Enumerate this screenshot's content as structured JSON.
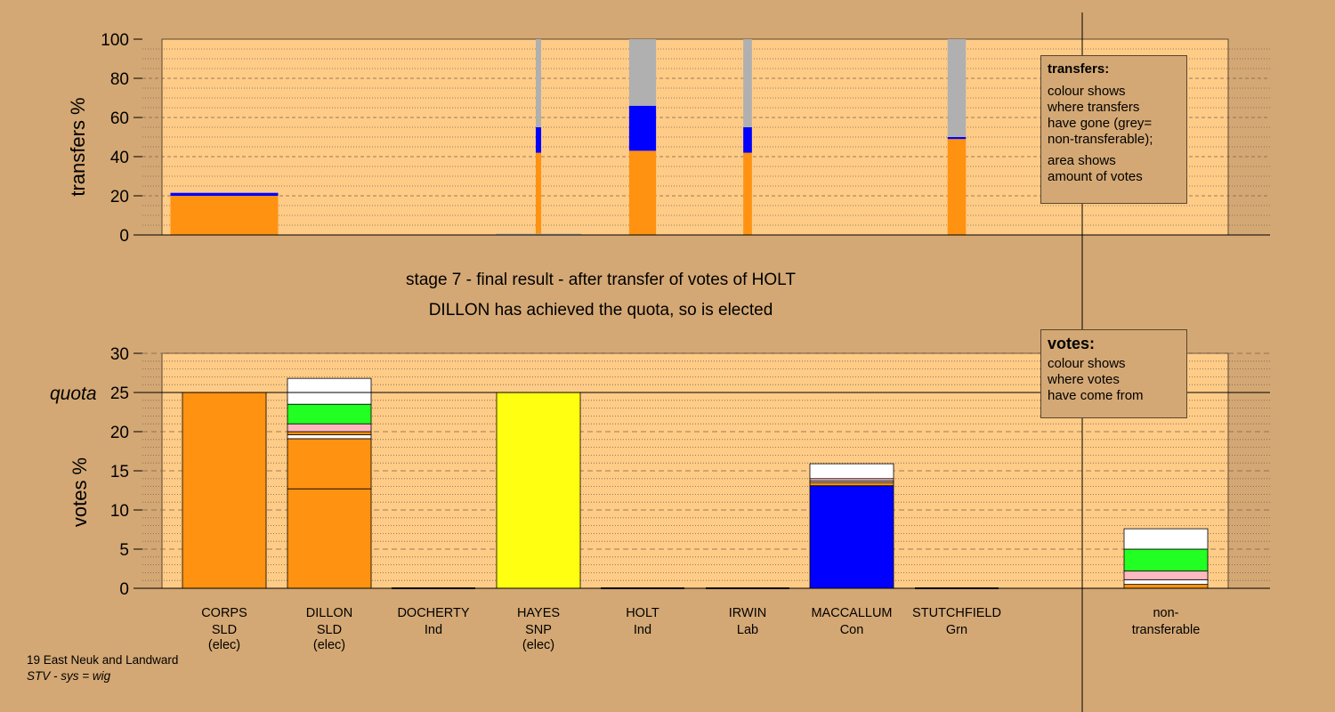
{
  "stage_title": "stage 7 - final result - after transfer of votes of HOLT",
  "stage_subtitle": "DILLON has achieved the quota, so is elected",
  "transfers_box": {
    "title": "transfers:",
    "lines_a": [
      "colour shows",
      "where transfers",
      "have gone (grey=",
      "non-transferable);"
    ],
    "lines_b": [
      "area shows",
      "amount of votes"
    ]
  },
  "votes_box": {
    "title": "votes:",
    "lines": [
      "colour shows",
      "where votes",
      "have come from"
    ]
  },
  "footer": {
    "constituency": "19 East Neuk and Landward",
    "system": "STV - sys = wig"
  },
  "colors": {
    "background": "#d4a874",
    "plot": "#ffcc88",
    "SLD": "#ff9211",
    "SNP": "#ffff11",
    "Con": "#0000ff",
    "Grn": "#22ff22",
    "Lab": "#ffb8c0",
    "Ind": "#ffffff",
    "nontransferable": "#b0b0b0"
  },
  "chart_data": [
    {
      "type": "bar",
      "subtype": "variable-width stacked",
      "ylabel": "transfers %",
      "ylim": [
        0,
        100
      ],
      "yticks": [
        0,
        20,
        40,
        60,
        80,
        100
      ],
      "grid": true,
      "bars": [
        {
          "column": "CORPS",
          "width_share": 1.0,
          "segments": [
            {
              "party": "SLD",
              "value": 20
            },
            {
              "party": "Con",
              "value": 1.5
            }
          ]
        },
        {
          "column": "HAYES",
          "width_share": 0.05,
          "segments": [
            {
              "party": "SLD",
              "value": 42
            },
            {
              "party": "Con",
              "value": 13
            },
            {
              "party": "nontransferable",
              "value": 45
            }
          ]
        },
        {
          "column": "HOLT",
          "width_share": 0.25,
          "segments": [
            {
              "party": "SLD",
              "value": 43
            },
            {
              "party": "Con",
              "value": 23
            },
            {
              "party": "nontransferable",
              "value": 34
            }
          ]
        },
        {
          "column": "IRWIN",
          "width_share": 0.08,
          "segments": [
            {
              "party": "SLD",
              "value": 42
            },
            {
              "party": "Con",
              "value": 13
            },
            {
              "party": "nontransferable",
              "value": 45
            }
          ]
        },
        {
          "column": "STUTCHFIELD",
          "width_share": 0.17,
          "segments": [
            {
              "party": "SLD",
              "value": 49
            },
            {
              "party": "Con",
              "value": 1
            },
            {
              "party": "nontransferable",
              "value": 50
            }
          ]
        }
      ]
    },
    {
      "type": "bar",
      "subtype": "stacked",
      "ylabel": "votes %",
      "ylim": [
        0,
        30
      ],
      "yticks": [
        0,
        5,
        10,
        15,
        20,
        25,
        30
      ],
      "quota": {
        "label": "quota",
        "value": 25
      },
      "grid": true,
      "categories": [
        {
          "name": "CORPS",
          "party": "SLD",
          "note": "(elec)"
        },
        {
          "name": "DILLON",
          "party": "SLD",
          "note": "(elec)"
        },
        {
          "name": "DOCHERTY",
          "party": "Ind",
          "note": ""
        },
        {
          "name": "HAYES",
          "party": "SNP",
          "note": "(elec)"
        },
        {
          "name": "HOLT",
          "party": "Ind",
          "note": ""
        },
        {
          "name": "IRWIN",
          "party": "Lab",
          "note": ""
        },
        {
          "name": "MACCALLUM",
          "party": "Con",
          "note": ""
        },
        {
          "name": "STUTCHFIELD",
          "party": "Grn",
          "note": ""
        }
      ],
      "nontransferable_label": [
        "non-",
        "transferable"
      ],
      "stacks": [
        [
          {
            "color": "SLD",
            "value": 25
          }
        ],
        [
          {
            "color": "SLD",
            "value": 12.7
          },
          {
            "color": "SLD",
            "value": 6.4
          },
          {
            "color": "Ind",
            "value": 0.5
          },
          {
            "color": "SLD",
            "value": 0.4
          },
          {
            "color": "Lab",
            "value": 1.0
          },
          {
            "color": "Grn",
            "value": 2.5
          },
          {
            "color": "Ind",
            "value": 3.3
          }
        ],
        [],
        [
          {
            "color": "SNP",
            "value": 25
          }
        ],
        [],
        [],
        [
          {
            "color": "Con",
            "value": 13.1
          },
          {
            "color": "SLD",
            "value": 0.4
          },
          {
            "color": "Ind",
            "value": 0.2
          },
          {
            "color": "Lab",
            "value": 0.3
          },
          {
            "color": "Ind",
            "value": 1.9
          }
        ],
        [],
        [
          {
            "color": "SLD",
            "value": 0.5
          },
          {
            "color": "Ind",
            "value": 0.6
          },
          {
            "color": "Lab",
            "value": 1.1
          },
          {
            "color": "Grn",
            "value": 2.8
          },
          {
            "color": "Ind",
            "value": 2.6
          }
        ]
      ]
    }
  ]
}
